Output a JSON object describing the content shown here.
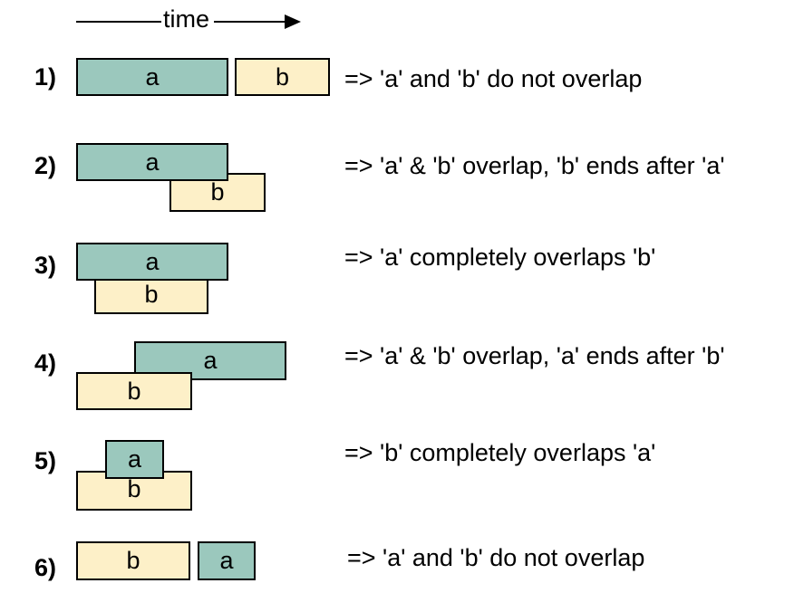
{
  "time_label": "time",
  "colors": {
    "a": "#9bc8bd",
    "b": "#fdf0c8",
    "border": "#000000"
  },
  "rows": [
    {
      "number": "1)",
      "a_label": "a",
      "b_label": "b",
      "description": "=> 'a' and 'b' do not overlap"
    },
    {
      "number": "2)",
      "a_label": "a",
      "b_label": "b",
      "description": "=> 'a' & 'b' overlap, 'b' ends after 'a'"
    },
    {
      "number": "3)",
      "a_label": "a",
      "b_label": "b",
      "description": "=> 'a' completely overlaps 'b'"
    },
    {
      "number": "4)",
      "a_label": "a",
      "b_label": "b",
      "description": "=> 'a' & 'b' overlap, 'a' ends after 'b'"
    },
    {
      "number": "5)",
      "a_label": "a",
      "b_label": "b",
      "description": "=> 'b' completely overlaps 'a'"
    },
    {
      "number": "6)",
      "a_label": "a",
      "b_label": "b",
      "description": "=> 'a' and 'b' do not overlap"
    }
  ]
}
